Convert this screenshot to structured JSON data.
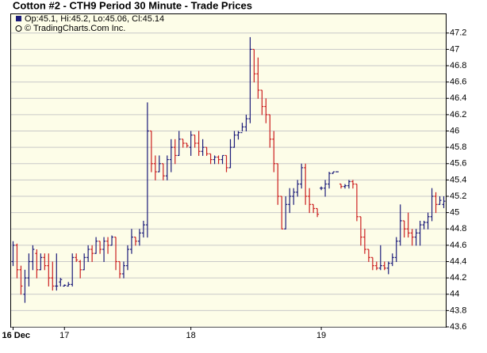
{
  "chart_data": {
    "type": "ohlc",
    "title": "Cotton #2 - CTH9 Period 30 Minute - Trade Prices",
    "legend_text": "Op:45.1, Hi:45.2, Lo:45.06, Cl:45.14",
    "copyright": "© TradingCharts.Com Inc.",
    "up_color": "#1c1c7a",
    "down_color": "#cc2020",
    "grid": true,
    "ylim": [
      43.6,
      47.44
    ],
    "yticks": [
      43.6,
      43.8,
      44,
      44.2,
      44.4,
      44.6,
      44.8,
      45,
      45.2,
      45.4,
      45.6,
      45.8,
      46,
      46.2,
      46.4,
      46.6,
      46.8,
      47,
      47.2
    ],
    "categories": [
      "16 Dec",
      null,
      null,
      null,
      null,
      null,
      null,
      null,
      null,
      null,
      null,
      null,
      null,
      "17",
      null,
      null,
      null,
      null,
      null,
      null,
      null,
      null,
      null,
      null,
      null,
      null,
      null,
      null,
      null,
      null,
      null,
      null,
      null,
      null,
      null,
      null,
      null,
      null,
      null,
      null,
      null,
      null,
      null,
      null,
      null,
      "18",
      null,
      null,
      null,
      null,
      null,
      null,
      null,
      null,
      null,
      null,
      null,
      null,
      null,
      null,
      null,
      null,
      null,
      null,
      null,
      null,
      null,
      null,
      null,
      null,
      null,
      null,
      null,
      null,
      null,
      null,
      null,
      null,
      "19",
      null,
      null,
      null,
      null,
      null,
      null,
      null,
      null,
      null,
      null,
      null,
      null,
      null,
      null,
      null,
      null,
      null,
      null,
      null,
      null,
      null,
      null,
      null,
      null,
      null,
      null,
      null,
      null,
      null,
      null,
      null
    ],
    "ohlc": [
      [
        44.4,
        44.65,
        44.35,
        44.6
      ],
      [
        44.6,
        44.62,
        44.2,
        44.3
      ],
      [
        44.3,
        44.35,
        44.0,
        44.1
      ],
      [
        44.0,
        44.3,
        43.9,
        44.2
      ],
      [
        44.2,
        44.5,
        44.1,
        44.4
      ],
      [
        44.4,
        44.6,
        44.3,
        44.55
      ],
      [
        44.5,
        44.55,
        44.2,
        44.3
      ],
      [
        44.3,
        44.5,
        44.3,
        44.45
      ],
      [
        44.45,
        44.5,
        44.3,
        44.35
      ],
      [
        44.35,
        44.5,
        44.1,
        44.2
      ],
      [
        44.2,
        44.4,
        44.05,
        44.1
      ],
      [
        44.1,
        44.5,
        44.05,
        44.1
      ],
      [
        44.15,
        44.2,
        44.1,
        44.18
      ],
      [
        44.1,
        44.12,
        44.1,
        44.11
      ],
      [
        44.1,
        44.15,
        44.1,
        44.12
      ],
      [
        44.12,
        44.5,
        44.1,
        44.45
      ],
      [
        44.45,
        44.5,
        44.4,
        44.42
      ],
      [
        44.4,
        44.42,
        44.2,
        44.3
      ],
      [
        44.3,
        44.5,
        44.3,
        44.45
      ],
      [
        44.45,
        44.6,
        44.4,
        44.55
      ],
      [
        44.55,
        44.6,
        44.4,
        44.5
      ],
      [
        44.5,
        44.7,
        44.5,
        44.65
      ],
      [
        44.65,
        44.65,
        44.5,
        44.55
      ],
      [
        44.55,
        44.7,
        44.4,
        44.65
      ],
      [
        44.65,
        44.7,
        44.5,
        44.6
      ],
      [
        44.6,
        44.72,
        44.6,
        44.7
      ],
      [
        44.7,
        44.7,
        44.3,
        44.4
      ],
      [
        44.4,
        44.4,
        44.2,
        44.25
      ],
      [
        44.25,
        44.4,
        44.2,
        44.35
      ],
      [
        44.35,
        44.6,
        44.3,
        44.55
      ],
      [
        44.55,
        44.8,
        44.5,
        44.7
      ],
      [
        44.7,
        44.7,
        44.6,
        44.65
      ],
      [
        44.65,
        44.8,
        44.6,
        44.75
      ],
      [
        44.75,
        44.9,
        44.7,
        44.85
      ],
      [
        44.85,
        46.35,
        44.7,
        46.0
      ],
      [
        46.0,
        46.0,
        45.5,
        45.6
      ],
      [
        45.6,
        45.7,
        45.4,
        45.5
      ],
      [
        45.5,
        45.7,
        45.5,
        45.6
      ],
      [
        45.6,
        45.6,
        45.4,
        45.45
      ],
      [
        45.45,
        45.7,
        45.4,
        45.65
      ],
      [
        45.65,
        45.9,
        45.5,
        45.8
      ],
      [
        45.8,
        45.9,
        45.6,
        45.7
      ],
      [
        45.7,
        46.0,
        45.7,
        45.9
      ],
      [
        45.9,
        45.9,
        45.8,
        45.85
      ],
      [
        45.85,
        45.85,
        45.8,
        45.82
      ],
      [
        45.8,
        46.0,
        45.7,
        45.95
      ],
      [
        45.95,
        45.95,
        45.8,
        45.85
      ],
      [
        45.85,
        46.0,
        45.7,
        45.75
      ],
      [
        45.75,
        45.9,
        45.7,
        45.8
      ],
      [
        45.8,
        45.8,
        45.7,
        45.72
      ],
      [
        45.72,
        45.72,
        45.6,
        45.65
      ],
      [
        45.65,
        45.7,
        45.6,
        45.68
      ],
      [
        45.68,
        45.7,
        45.6,
        45.65
      ],
      [
        45.65,
        45.7,
        45.6,
        45.7
      ],
      [
        45.7,
        45.7,
        45.5,
        45.55
      ],
      [
        45.55,
        45.9,
        45.55,
        45.8
      ],
      [
        45.8,
        46.0,
        45.8,
        45.95
      ],
      [
        45.95,
        46.0,
        45.9,
        45.98
      ],
      [
        45.98,
        46.1,
        46.0,
        46.05
      ],
      [
        46.05,
        46.2,
        46.0,
        46.15
      ],
      [
        46.15,
        47.15,
        46.1,
        47.0
      ],
      [
        47.0,
        47.0,
        46.6,
        46.7
      ],
      [
        46.7,
        46.9,
        46.4,
        46.5
      ],
      [
        46.5,
        46.5,
        46.2,
        46.3
      ],
      [
        46.3,
        46.4,
        46.1,
        46.2
      ],
      [
        46.2,
        46.2,
        45.8,
        45.9
      ],
      [
        45.9,
        46.0,
        45.5,
        45.6
      ],
      [
        45.6,
        45.6,
        45.1,
        45.2
      ],
      [
        45.2,
        45.2,
        44.8,
        44.8
      ],
      [
        44.8,
        45.2,
        44.8,
        45.1
      ],
      [
        45.1,
        45.3,
        45.0,
        45.2
      ],
      [
        45.2,
        45.3,
        45.1,
        45.25
      ],
      [
        45.25,
        45.4,
        45.2,
        45.35
      ],
      [
        45.35,
        45.6,
        45.3,
        45.55
      ],
      [
        45.55,
        45.6,
        45.1,
        45.2
      ],
      [
        45.2,
        45.3,
        45.0,
        45.1
      ],
      [
        45.1,
        45.1,
        45.0,
        45.05
      ],
      [
        45.05,
        45.05,
        44.95,
        44.98
      ],
      [
        45.3,
        45.32,
        45.28,
        45.3
      ],
      [
        45.3,
        45.4,
        45.2,
        45.35
      ],
      [
        45.35,
        45.5,
        45.3,
        45.48
      ],
      [
        45.48,
        45.5,
        45.48,
        45.5
      ],
      [
        45.5,
        45.5,
        45.5,
        45.5
      ],
      [
        45.35,
        45.35,
        45.3,
        45.32
      ],
      [
        45.32,
        45.35,
        45.3,
        45.33
      ],
      [
        45.33,
        45.4,
        45.3,
        45.38
      ],
      [
        45.38,
        45.4,
        45.3,
        45.35
      ],
      [
        45.35,
        45.35,
        44.9,
        44.95
      ],
      [
        44.95,
        44.95,
        44.6,
        44.7
      ],
      [
        44.7,
        44.8,
        44.5,
        44.55
      ],
      [
        44.55,
        44.55,
        44.4,
        44.45
      ],
      [
        44.45,
        44.45,
        44.3,
        44.35
      ],
      [
        44.35,
        44.4,
        44.3,
        44.32
      ],
      [
        44.32,
        44.6,
        44.3,
        44.35
      ],
      [
        44.35,
        44.4,
        44.3,
        44.32
      ],
      [
        44.32,
        44.4,
        44.25,
        44.38
      ],
      [
        44.38,
        44.5,
        44.35,
        44.45
      ],
      [
        44.45,
        44.7,
        44.4,
        44.65
      ],
      [
        44.65,
        45.1,
        44.6,
        44.9
      ],
      [
        44.9,
        44.9,
        44.7,
        44.8
      ],
      [
        44.8,
        45.0,
        44.7,
        44.75
      ],
      [
        44.75,
        44.8,
        44.6,
        44.7
      ],
      [
        44.7,
        44.8,
        44.6,
        44.75
      ],
      [
        44.75,
        44.9,
        44.6,
        44.85
      ],
      [
        44.85,
        44.9,
        44.8,
        44.88
      ],
      [
        44.88,
        45.0,
        44.8,
        44.95
      ],
      [
        44.95,
        45.3,
        44.9,
        45.2
      ],
      [
        45.2,
        45.25,
        45.0,
        45.1
      ],
      [
        45.1,
        45.2,
        45.1,
        45.15
      ],
      [
        45.1,
        45.2,
        45.06,
        45.14
      ]
    ]
  }
}
